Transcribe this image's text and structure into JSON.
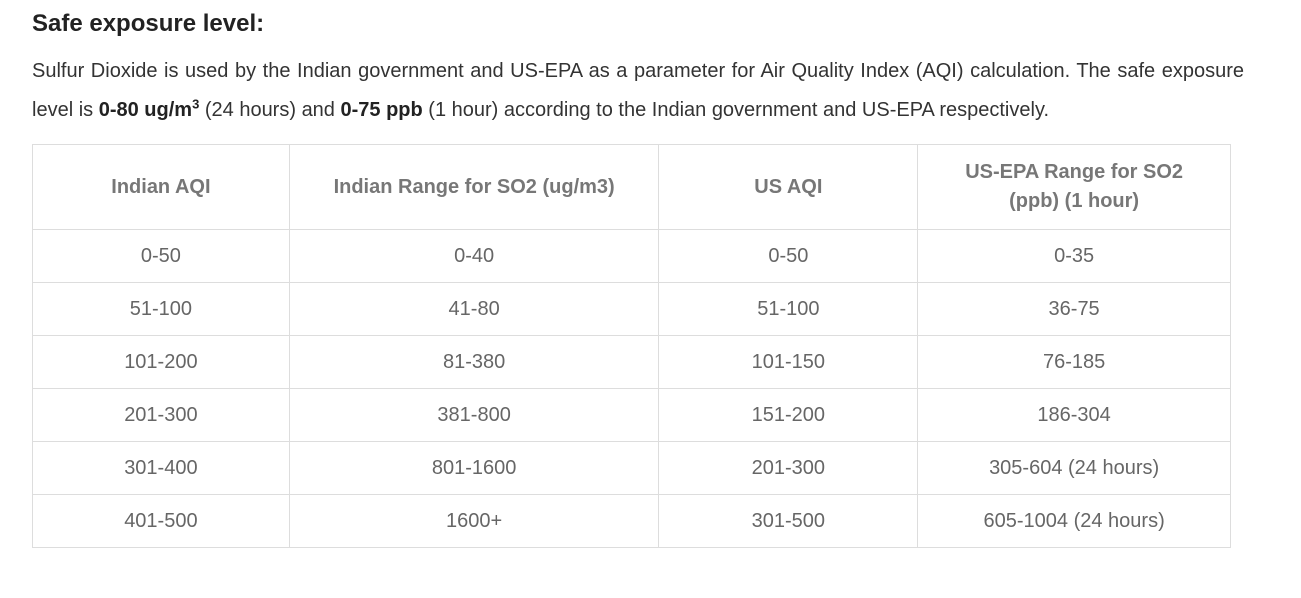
{
  "heading": "Safe exposure level:",
  "intro": {
    "text1": "Sulfur Dioxide is used by the Indian government and US-EPA as a parameter for Air Quality Index (AQI) calculation. The safe exposure level is ",
    "bold1": "0-80 ug/m",
    "bold1_sup": "3",
    "text2": " (24 hours) and ",
    "bold2": "0-75 ppb",
    "text3": " (1 hour) according to the Indian government and US-EPA respectively."
  },
  "table": {
    "headers": [
      "Indian AQI",
      "Indian Range for SO2 (ug/m3)",
      "US AQI",
      "US-EPA Range for SO2 (ppb) (1 hour)"
    ],
    "rows": [
      [
        "0-50",
        "0-40",
        "0-50",
        "0-35"
      ],
      [
        "51-100",
        "41-80",
        "51-100",
        "36-75"
      ],
      [
        "101-200",
        "81-380",
        "101-150",
        "76-185"
      ],
      [
        "201-300",
        "381-800",
        "151-200",
        "186-304"
      ],
      [
        "301-400",
        "801-1600",
        "201-300",
        "305-604 (24 hours)"
      ],
      [
        "401-500",
        "1600+",
        "301-500",
        "605-1004 (24 hours)"
      ]
    ]
  }
}
